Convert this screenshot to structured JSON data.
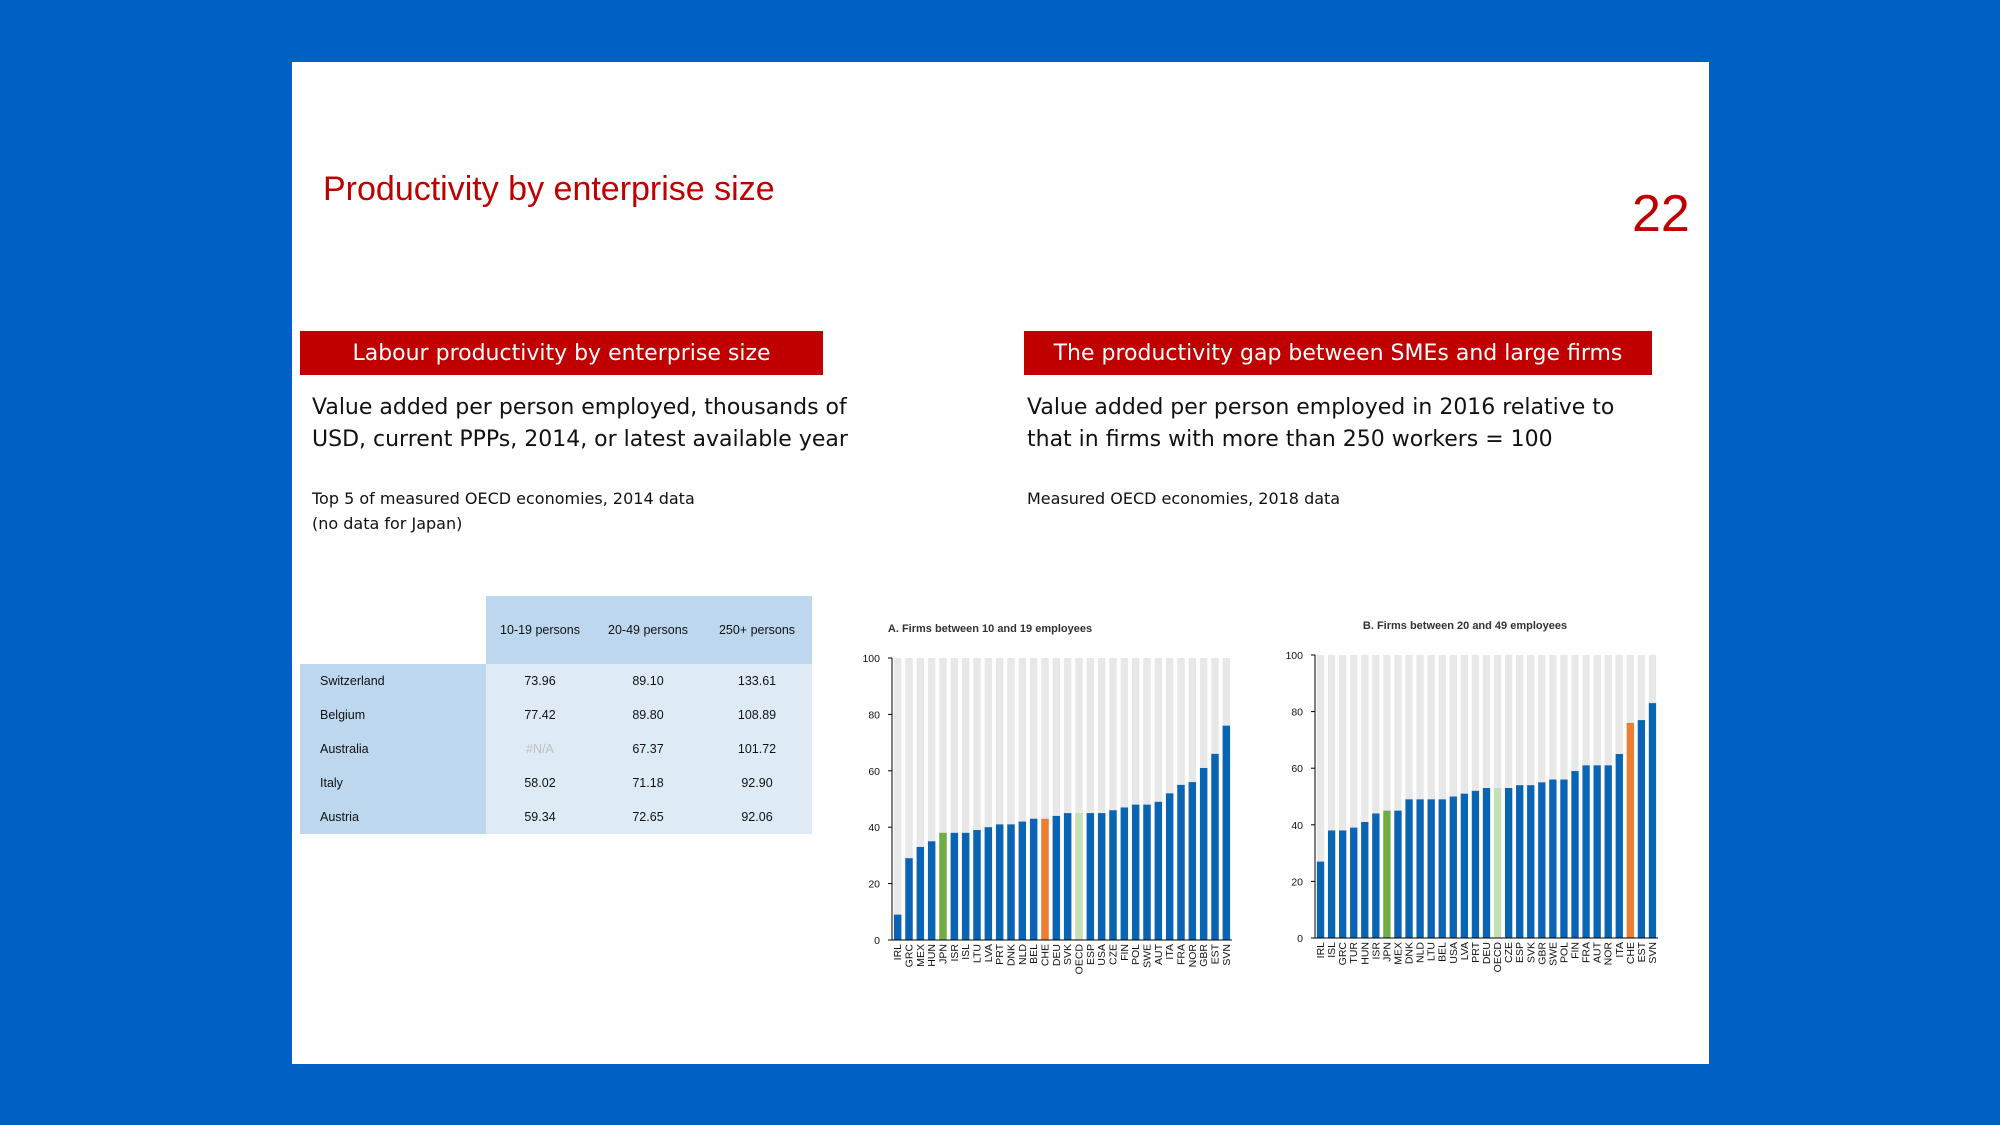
{
  "slide": {
    "title": "Productivity by enterprise size",
    "page_number": "22"
  },
  "left_panel": {
    "banner": "Labour productivity by enterprise size",
    "description": [
      "Value added per person employed, thousands of",
      "USD, current PPPs, 2014, or latest available year"
    ],
    "note": [
      "Top 5 of measured OECD economies, 2014 data",
      "(no data for Japan)"
    ]
  },
  "right_panel": {
    "banner": "The productivity gap between SMEs and large firms",
    "description": [
      "Value added per person employed in 2016 relative to",
      "that in firms with more than 250 workers = 100"
    ],
    "note": [
      "Measured OECD economies, 2018 data"
    ]
  },
  "colors": {
    "accent": "#c00000",
    "background": "#0060c4",
    "bar": "#0a64b4",
    "japan": "#70ad47",
    "switzerland": "#ed7d31",
    "oecd": "#c5e0b4",
    "plot_background": "#e8e8e8"
  },
  "chart_data": [
    {
      "type": "table",
      "columns": [
        "10-19 persons",
        "20-49 persons",
        "250+ persons"
      ],
      "rows": [
        {
          "country": "Switzerland",
          "values": [
            "73.96",
            "89.10",
            "133.61"
          ]
        },
        {
          "country": "Belgium",
          "values": [
            "77.42",
            "89.80",
            "108.89"
          ]
        },
        {
          "country": "Australia",
          "values": [
            "#N/A",
            "67.37",
            "101.72"
          ]
        },
        {
          "country": "Italy",
          "values": [
            "58.02",
            "71.18",
            "92.90"
          ]
        },
        {
          "country": "Austria",
          "values": [
            "59.34",
            "72.65",
            "92.06"
          ]
        }
      ]
    },
    {
      "type": "bar",
      "title": "A. Firms between 10 and 19 employees",
      "categories": [
        "IRL",
        "GRC",
        "MEX",
        "HUN",
        "JPN",
        "ISR",
        "ISL",
        "LTU",
        "LVA",
        "PRT",
        "DNK",
        "NLD",
        "BEL",
        "CHE",
        "DEU",
        "SVK",
        "OECD",
        "ESP",
        "USA",
        "CZE",
        "FIN",
        "POL",
        "SWE",
        "AUT",
        "ITA",
        "FRA",
        "NOR",
        "GBR",
        "EST",
        "SVN"
      ],
      "values": [
        9,
        29,
        33,
        35,
        38,
        38,
        38,
        39,
        40,
        41,
        41,
        42,
        43,
        43,
        44,
        45,
        45,
        45,
        45,
        46,
        47,
        48,
        48,
        49,
        52,
        55,
        56,
        61,
        66,
        76
      ],
      "highlights": {
        "JPN": "japan",
        "CHE": "switzerland",
        "OECD": "oecd"
      },
      "ylim": [
        0,
        100
      ],
      "yticks": [
        0,
        20,
        40,
        60,
        80,
        100
      ],
      "grid": false
    },
    {
      "type": "bar",
      "title": "B. Firms between 20 and 49 employees",
      "categories": [
        "IRL",
        "ISL",
        "GRC",
        "TUR",
        "HUN",
        "ISR",
        "JPN",
        "MEX",
        "DNK",
        "NLD",
        "LTU",
        "BEL",
        "USA",
        "LVA",
        "PRT",
        "DEU",
        "OECD",
        "CZE",
        "ESP",
        "SVK",
        "GBR",
        "SWE",
        "POL",
        "FIN",
        "FRA",
        "AUT",
        "NOR",
        "ITA",
        "CHE",
        "EST",
        "SVN"
      ],
      "values": [
        27,
        38,
        38,
        39,
        41,
        44,
        45,
        45,
        49,
        49,
        49,
        49,
        50,
        51,
        52,
        53,
        53,
        53,
        54,
        54,
        55,
        56,
        56,
        59,
        61,
        61,
        61,
        65,
        76,
        77,
        83
      ],
      "highlights": {
        "JPN": "japan",
        "CHE": "switzerland",
        "OECD": "oecd"
      },
      "ylim": [
        0,
        100
      ],
      "yticks": [
        0,
        20,
        40,
        60,
        80,
        100
      ],
      "grid": false
    }
  ]
}
